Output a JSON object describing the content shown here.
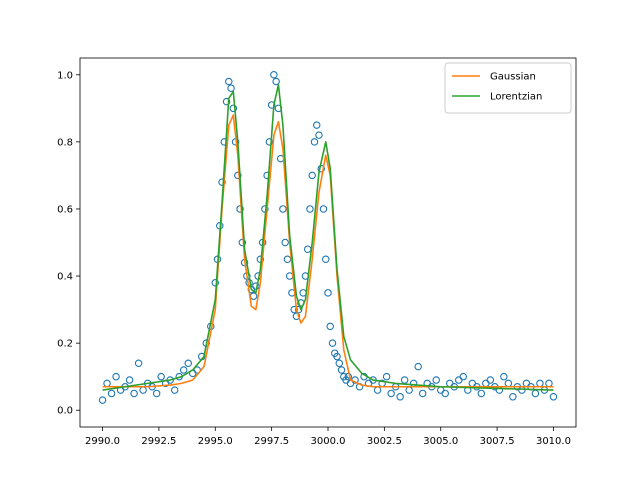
{
  "chart_data": {
    "type": "scatter",
    "title": "",
    "xlabel": "",
    "ylabel": "",
    "xlim": [
      2989,
      3011
    ],
    "ylim": [
      -0.05,
      1.05
    ],
    "grid": false,
    "legend_position": "top-right",
    "x_ticks": [
      2990.0,
      2992.5,
      2995.0,
      2997.5,
      3000.0,
      3002.5,
      3005.0,
      3007.5,
      3010.0
    ],
    "x_tick_labels": [
      "2990.0",
      "2992.5",
      "2995.0",
      "2997.5",
      "3000.0",
      "3002.5",
      "3005.0",
      "3007.5",
      "3010.0"
    ],
    "y_ticks": [
      0.0,
      0.2,
      0.4,
      0.6,
      0.8,
      1.0
    ],
    "y_tick_labels": [
      "0.0",
      "0.2",
      "0.4",
      "0.6",
      "0.8",
      "1.0"
    ],
    "scatter": {
      "color": "#1f77b4",
      "x": [
        2990.0,
        2990.2,
        2990.4,
        2990.6,
        2990.8,
        2991.0,
        2991.2,
        2991.4,
        2991.6,
        2991.8,
        2992.0,
        2992.2,
        2992.4,
        2992.6,
        2992.8,
        2993.0,
        2993.2,
        2993.4,
        2993.6,
        2993.8,
        2994.0,
        2994.2,
        2994.4,
        2994.6,
        2994.8,
        2995.0,
        2995.1,
        2995.2,
        2995.3,
        2995.4,
        2995.5,
        2995.6,
        2995.7,
        2995.8,
        2995.9,
        2996.0,
        2996.1,
        2996.2,
        2996.3,
        2996.4,
        2996.5,
        2996.6,
        2996.7,
        2996.8,
        2996.9,
        2997.0,
        2997.1,
        2997.2,
        2997.3,
        2997.4,
        2997.5,
        2997.6,
        2997.7,
        2997.8,
        2997.9,
        2998.0,
        2998.1,
        2998.2,
        2998.3,
        2998.4,
        2998.5,
        2998.6,
        2998.7,
        2998.8,
        2998.9,
        2999.0,
        2999.1,
        2999.2,
        2999.3,
        2999.4,
        2999.5,
        2999.6,
        2999.7,
        2999.8,
        2999.9,
        3000.0,
        3000.1,
        3000.2,
        3000.3,
        3000.4,
        3000.5,
        3000.6,
        3000.7,
        3000.8,
        3000.9,
        3001.0,
        3001.2,
        3001.4,
        3001.6,
        3001.8,
        3002.0,
        3002.2,
        3002.4,
        3002.6,
        3002.8,
        3003.0,
        3003.2,
        3003.4,
        3003.6,
        3003.8,
        3004.0,
        3004.2,
        3004.4,
        3004.6,
        3004.8,
        3005.0,
        3005.2,
        3005.4,
        3005.6,
        3005.8,
        3006.0,
        3006.2,
        3006.4,
        3006.6,
        3006.8,
        3007.0,
        3007.2,
        3007.4,
        3007.6,
        3007.8,
        3008.0,
        3008.2,
        3008.4,
        3008.6,
        3008.8,
        3009.0,
        3009.2,
        3009.4,
        3009.6,
        3009.8,
        3010.0
      ],
      "y": [
        0.03,
        0.08,
        0.05,
        0.1,
        0.06,
        0.07,
        0.09,
        0.05,
        0.14,
        0.06,
        0.08,
        0.07,
        0.05,
        0.1,
        0.08,
        0.09,
        0.06,
        0.1,
        0.12,
        0.14,
        0.11,
        0.12,
        0.16,
        0.2,
        0.25,
        0.38,
        0.45,
        0.55,
        0.68,
        0.8,
        0.92,
        0.98,
        0.96,
        0.9,
        0.8,
        0.7,
        0.6,
        0.5,
        0.44,
        0.4,
        0.38,
        0.36,
        0.34,
        0.37,
        0.4,
        0.45,
        0.5,
        0.6,
        0.7,
        0.8,
        0.91,
        1.0,
        0.98,
        0.9,
        0.75,
        0.6,
        0.5,
        0.45,
        0.4,
        0.35,
        0.3,
        0.28,
        0.3,
        0.32,
        0.35,
        0.4,
        0.48,
        0.6,
        0.7,
        0.8,
        0.85,
        0.82,
        0.72,
        0.6,
        0.45,
        0.35,
        0.25,
        0.2,
        0.17,
        0.16,
        0.14,
        0.12,
        0.1,
        0.09,
        0.1,
        0.08,
        0.09,
        0.07,
        0.1,
        0.08,
        0.09,
        0.06,
        0.08,
        0.1,
        0.05,
        0.07,
        0.04,
        0.09,
        0.06,
        0.08,
        0.13,
        0.05,
        0.08,
        0.07,
        0.09,
        0.06,
        0.05,
        0.08,
        0.07,
        0.09,
        0.1,
        0.06,
        0.08,
        0.07,
        0.05,
        0.08,
        0.09,
        0.07,
        0.06,
        0.1,
        0.08,
        0.04,
        0.07,
        0.06,
        0.08,
        0.07,
        0.05,
        0.08,
        0.06,
        0.08,
        0.04
      ]
    },
    "series": [
      {
        "name": "Gaussian",
        "color": "#ff7f0e",
        "x": [
          2990.0,
          2991.0,
          2992.0,
          2993.0,
          2993.5,
          2994.0,
          2994.5,
          2995.0,
          2995.3,
          2995.6,
          2995.8,
          2996.0,
          2996.3,
          2996.6,
          2996.8,
          2997.0,
          2997.3,
          2997.6,
          2997.8,
          2998.0,
          2998.3,
          2998.6,
          2998.8,
          2999.0,
          2999.3,
          2999.6,
          2999.9,
          3000.1,
          3000.4,
          3000.7,
          3001.0,
          3001.5,
          3002.0,
          3003.0,
          3005.0,
          3007.5,
          3010.0
        ],
        "y": [
          0.07,
          0.07,
          0.07,
          0.075,
          0.08,
          0.09,
          0.13,
          0.3,
          0.6,
          0.85,
          0.88,
          0.76,
          0.45,
          0.31,
          0.3,
          0.38,
          0.6,
          0.82,
          0.86,
          0.78,
          0.5,
          0.3,
          0.26,
          0.28,
          0.45,
          0.65,
          0.76,
          0.7,
          0.4,
          0.18,
          0.09,
          0.075,
          0.07,
          0.07,
          0.07,
          0.07,
          0.07
        ]
      },
      {
        "name": "Lorentzian",
        "color": "#2ca02c",
        "x": [
          2990.0,
          2991.0,
          2992.0,
          2993.0,
          2993.5,
          2994.0,
          2994.5,
          2995.0,
          2995.3,
          2995.6,
          2995.8,
          2996.0,
          2996.3,
          2996.6,
          2996.8,
          2997.0,
          2997.3,
          2997.6,
          2997.8,
          2998.0,
          2998.3,
          2998.6,
          2998.8,
          2999.0,
          2999.3,
          2999.6,
          2999.9,
          3000.1,
          3000.4,
          3000.7,
          3001.0,
          3001.5,
          3002.0,
          3003.0,
          3005.0,
          3007.5,
          3010.0
        ],
        "y": [
          0.06,
          0.07,
          0.08,
          0.09,
          0.1,
          0.12,
          0.16,
          0.33,
          0.62,
          0.93,
          0.95,
          0.8,
          0.48,
          0.36,
          0.35,
          0.42,
          0.64,
          0.91,
          0.97,
          0.85,
          0.52,
          0.34,
          0.3,
          0.33,
          0.5,
          0.71,
          0.8,
          0.72,
          0.42,
          0.22,
          0.15,
          0.11,
          0.09,
          0.08,
          0.07,
          0.065,
          0.06
        ]
      }
    ]
  }
}
